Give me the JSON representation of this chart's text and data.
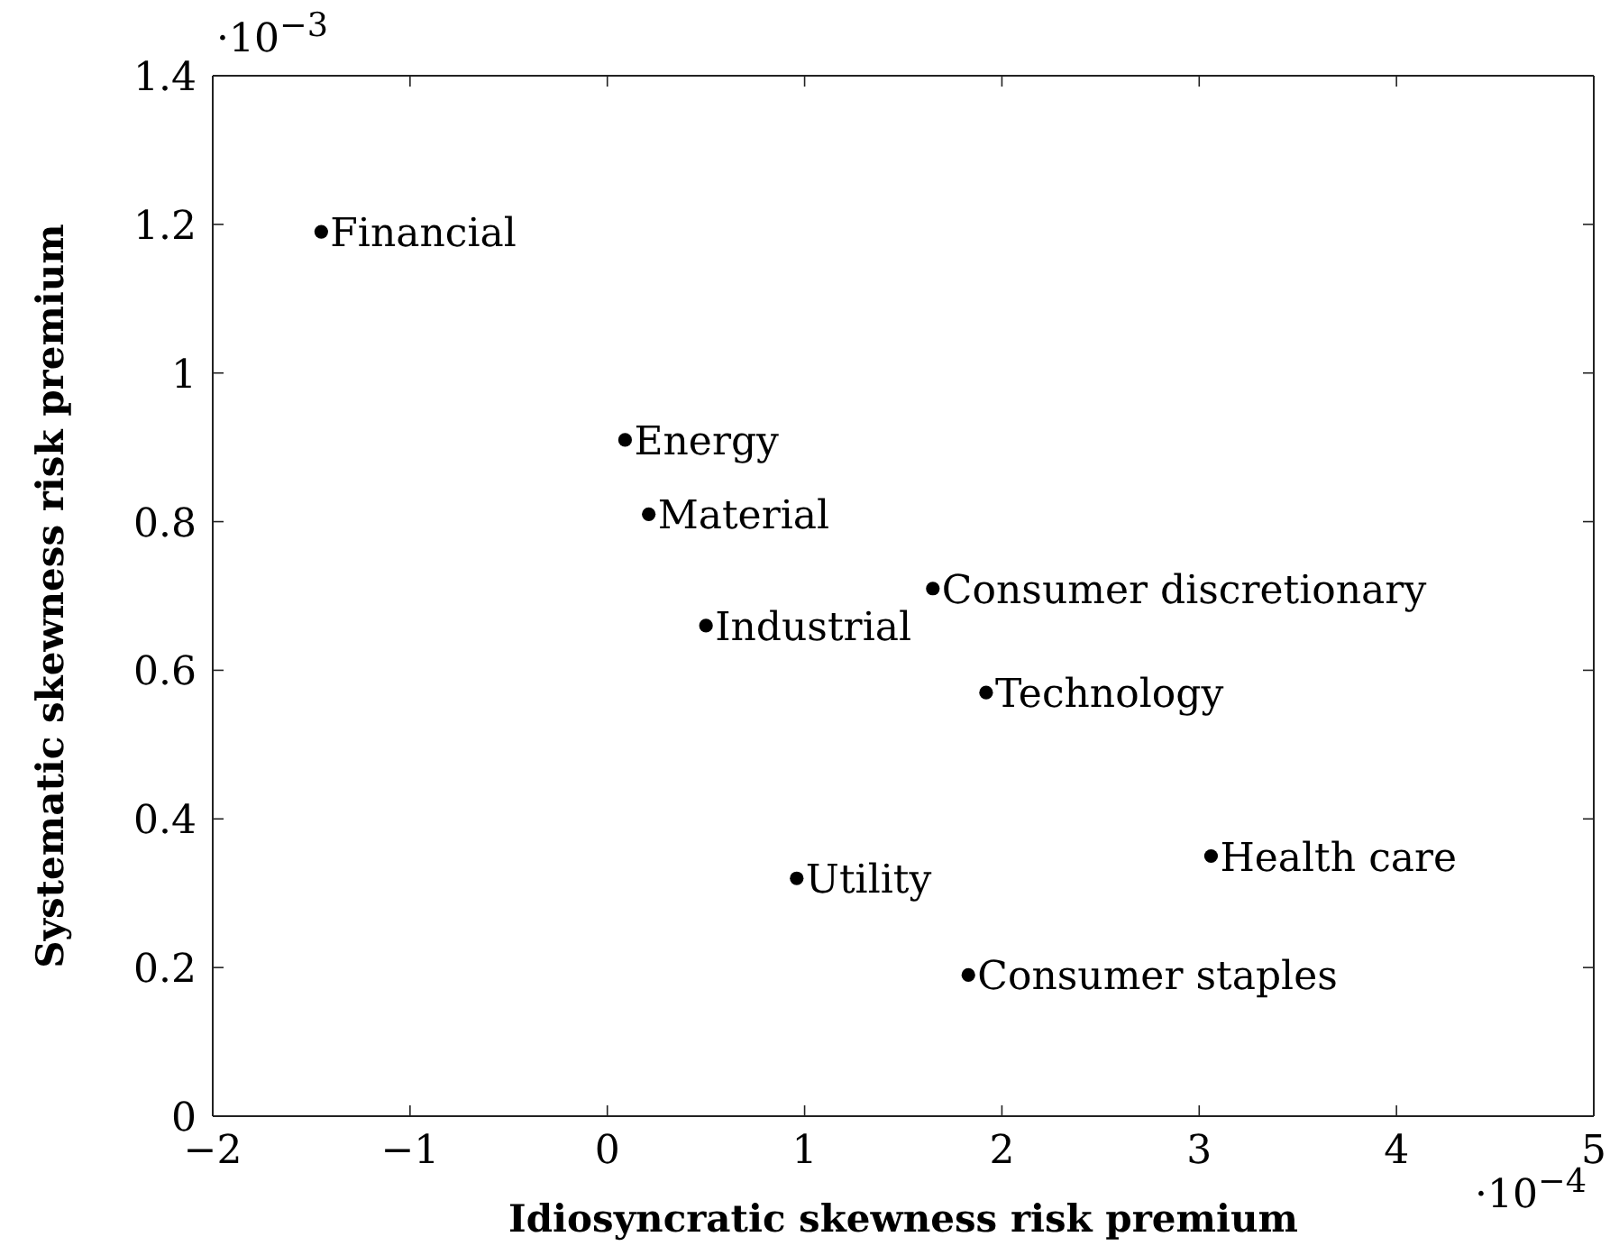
{
  "chart_data": {
    "type": "scatter",
    "xlabel": "Idiosyncratic skewness risk premium",
    "ylabel": "Systematic skewness risk premium",
    "xlim": [
      -2,
      5
    ],
    "ylim": [
      0,
      1.4
    ],
    "xticks": [
      {
        "value": -2,
        "label": "−2"
      },
      {
        "value": -1,
        "label": "−1"
      },
      0,
      1,
      2,
      3,
      4,
      5
    ],
    "yticks": [
      0,
      0.2,
      0.4,
      0.6,
      0.8,
      1,
      1.2,
      1.4
    ],
    "marker": "circle",
    "annotations": [
      "·10$^{−3}$",
      "·10$^{−4}$"
    ],
    "series": [
      {
        "name": "Financial",
        "color": "#000000",
        "x": [
          -1.45
        ],
        "values": [
          1.19
        ]
      },
      {
        "name": "Energy",
        "color": "#000000",
        "x": [
          0.09
        ],
        "values": [
          0.91
        ]
      },
      {
        "name": "Material",
        "color": "#000000",
        "x": [
          0.21
        ],
        "values": [
          0.81
        ]
      },
      {
        "name": "Consumer discretionary",
        "color": "#000000",
        "x": [
          1.65
        ],
        "values": [
          0.71
        ]
      },
      {
        "name": "Industrial",
        "color": "#000000",
        "x": [
          0.5
        ],
        "values": [
          0.66
        ]
      },
      {
        "name": "Technology",
        "color": "#000000",
        "x": [
          1.92
        ],
        "values": [
          0.57
        ]
      },
      {
        "name": "Health care",
        "color": "#000000",
        "x": [
          3.06
        ],
        "values": [
          0.35
        ]
      },
      {
        "name": "Utility",
        "color": "#000000",
        "x": [
          0.96
        ],
        "values": [
          0.32
        ]
      },
      {
        "name": "Consumer staples",
        "color": "#000000",
        "x": [
          1.83
        ],
        "values": [
          0.19
        ]
      }
    ]
  }
}
